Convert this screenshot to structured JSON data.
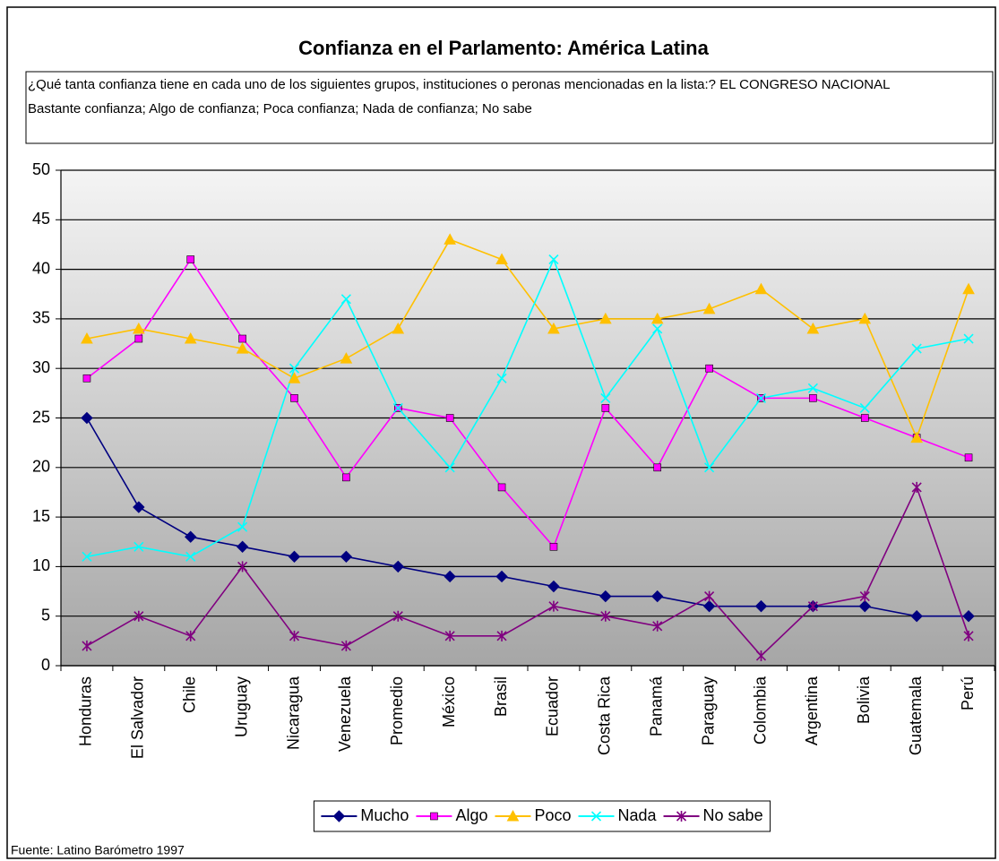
{
  "chart_data": {
    "type": "line",
    "title": "Confianza en el Parlamento: América Latina",
    "subtitle": [
      "¿Qué tanta confianza tiene en cada uno de los siguientes grupos, instituciones o peronas mencionadas en la lista:? EL CONGRESO NACIONAL",
      "Bastante confianza; Algo de confianza; Poca confianza; Nada de confianza; No sabe"
    ],
    "source": "Fuente: Latino Barómetro 1997",
    "categories": [
      "Honduras",
      "El Salvador",
      "Chile",
      "Uruguay",
      "Nicaragua",
      "Venezuela",
      "Promedio",
      "México",
      "Brasil",
      "Ecuador",
      "Costa Rica",
      "Panamá",
      "Paraguay",
      "Colombia",
      "Argentina",
      "Bolivia",
      "Guatemala",
      "Perú"
    ],
    "series": [
      {
        "name": "Mucho",
        "color": "#000080",
        "marker": "diamond",
        "values": [
          25,
          16,
          13,
          12,
          11,
          11,
          10,
          9,
          9,
          8,
          7,
          7,
          6,
          6,
          6,
          6,
          5,
          5
        ]
      },
      {
        "name": "Algo",
        "color": "#ff00ff",
        "marker": "square",
        "values": [
          29,
          33,
          41,
          33,
          27,
          19,
          26,
          25,
          18,
          12,
          26,
          20,
          30,
          27,
          27,
          25,
          23,
          21
        ]
      },
      {
        "name": "Poco",
        "color": "#ffc000",
        "marker": "triangle",
        "values": [
          33,
          34,
          33,
          32,
          29,
          31,
          34,
          43,
          41,
          34,
          35,
          35,
          36,
          38,
          34,
          35,
          23,
          38
        ]
      },
      {
        "name": "Nada",
        "color": "#00ffff",
        "marker": "x",
        "values": [
          11,
          12,
          11,
          14,
          30,
          37,
          26,
          20,
          29,
          41,
          27,
          34,
          20,
          27,
          28,
          26,
          32,
          33
        ]
      },
      {
        "name": "No sabe",
        "color": "#800080",
        "marker": "star",
        "values": [
          2,
          5,
          3,
          10,
          3,
          2,
          5,
          3,
          3,
          6,
          5,
          4,
          7,
          1,
          6,
          7,
          18,
          3
        ]
      }
    ],
    "ylim": [
      0,
      50
    ],
    "yticks": [
      0,
      5,
      10,
      15,
      20,
      25,
      30,
      35,
      40,
      45,
      50
    ],
    "grid": true,
    "legend": "bottom"
  }
}
